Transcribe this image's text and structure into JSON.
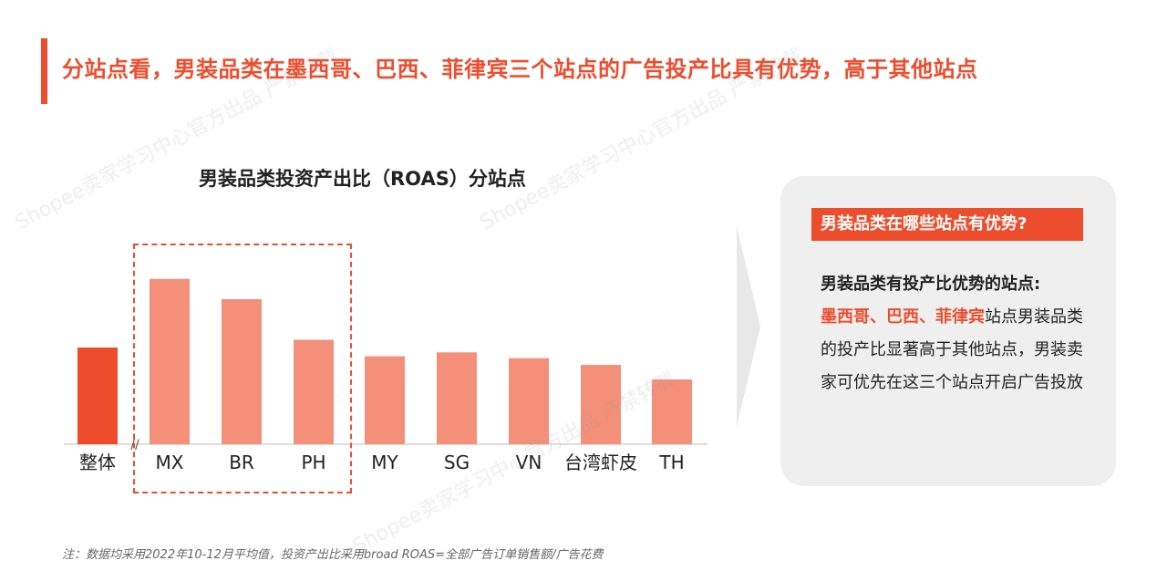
{
  "headline": "分站点看，男装品类在墨西哥、巴西、菲律宾三个站点的广告投产比具有优势，高于其他站点",
  "chart_data": {
    "type": "bar",
    "title": "男装品类投资产出比（ROAS）分站点",
    "categories": [
      "整体",
      "MX",
      "BR",
      "PH",
      "MY",
      "SG",
      "VN",
      "台湾虾皮",
      "TH"
    ],
    "values": [
      1.0,
      1.71,
      1.5,
      1.08,
      0.91,
      0.95,
      0.89,
      0.82,
      0.67
    ],
    "highlight_color": "#ee4d2d",
    "bar_color": "#f4907a",
    "axis_break_symbol": "//",
    "highlighted_categories": [
      "MX",
      "BR",
      "PH"
    ]
  },
  "panel": {
    "heading": "男装品类在哪些站点有优势?",
    "lead": "男装品类有投产比优势的站点:",
    "highlight_text": "墨西哥、巴西、菲律宾",
    "body_text": "站点男装品类的投产比显著高于其他站点，男装卖家可优先在这三个站点开启广告投放"
  },
  "footnote": "注：数据均采用2022年10-12月平均值，投资产出比采用broad ROAS=全部广告订单销售额/广告花费",
  "watermark": "Shopee卖家学习中心官方出品 严禁转载"
}
